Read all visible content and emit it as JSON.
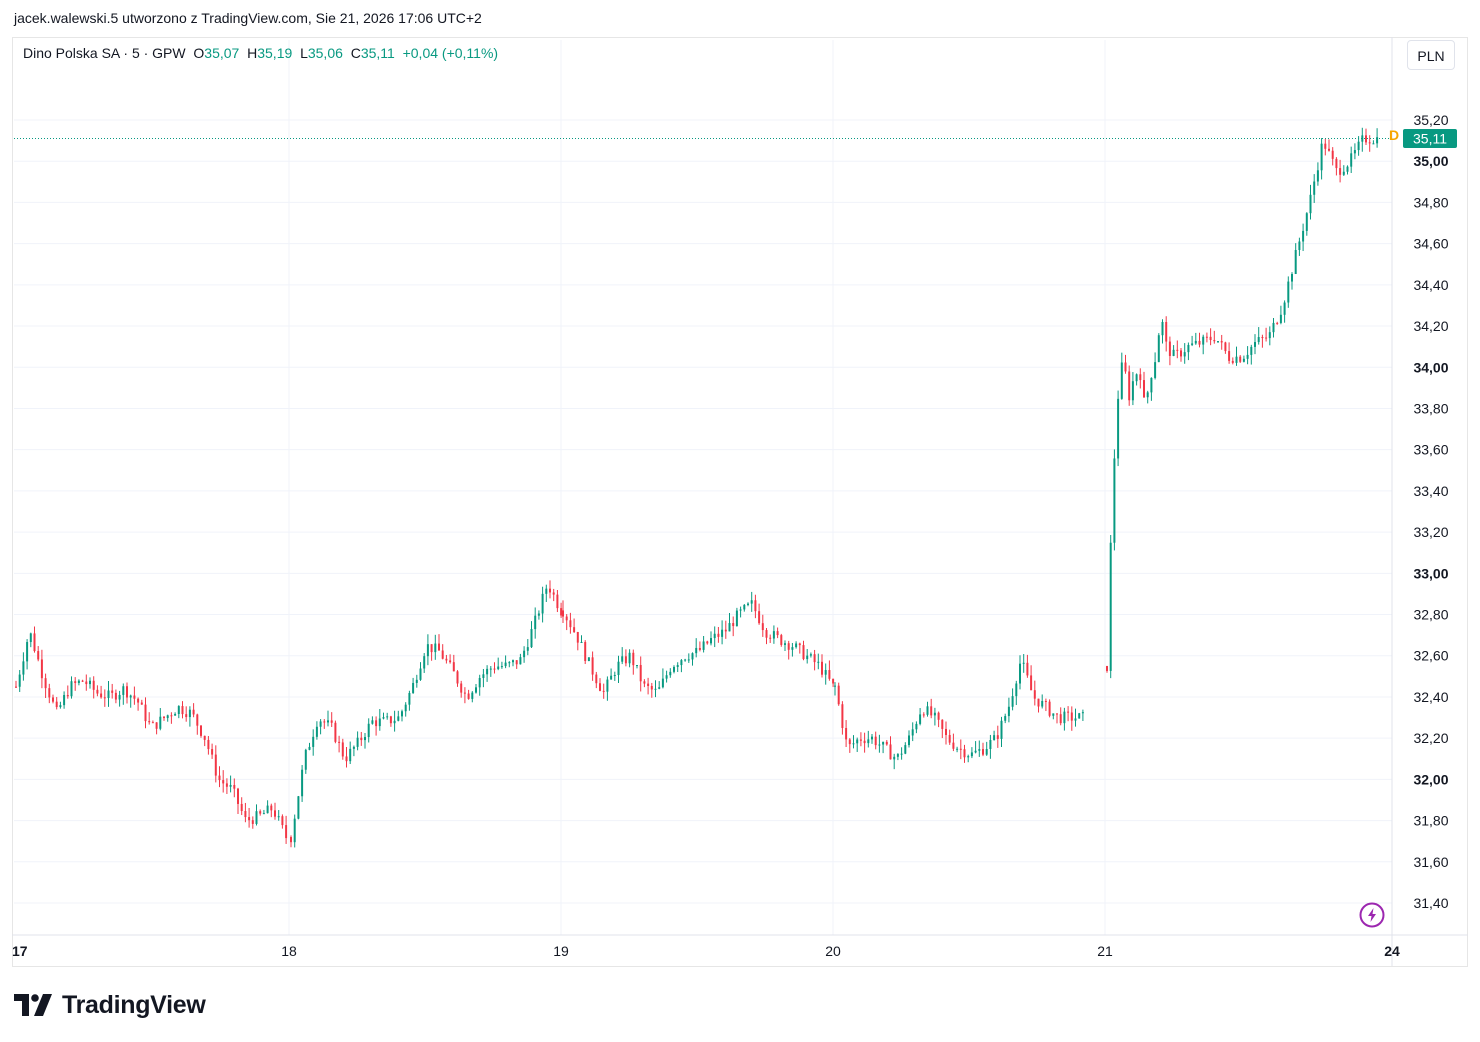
{
  "header": {
    "attribution": "jacek.walewski.5 utworzono z TradingView.com, Sie 21, 2026 17:06 UTC+2"
  },
  "legend": {
    "symbol": "Dino Polska SA · 5 · GPW",
    "o_label": "O",
    "o_value": "35,07",
    "h_label": "H",
    "h_value": "35,19",
    "l_label": "L",
    "l_value": "35,06",
    "c_label": "C",
    "c_value": "35,11",
    "change": "+0,04 (+0,11%)"
  },
  "currency": "PLN",
  "last_price_label": "35,11",
  "dividend_marker": "D",
  "logo_text": "TradingView",
  "colors": {
    "up": "#089981",
    "down": "#f23645",
    "accent": "#089981",
    "dividend": "#f7a600",
    "lightning": "#9c27b0"
  },
  "icons": {
    "logo": "tradingview-logo-icon",
    "alert": "lightning-icon"
  },
  "chart_data": {
    "type": "candlestick",
    "symbol": "Dino Polska SA",
    "interval": "5",
    "exchange": "GPW",
    "currency": "PLN",
    "ylim": [
      31.3,
      35.3
    ],
    "yticks": [
      31.4,
      31.6,
      31.8,
      32.0,
      32.2,
      32.4,
      32.6,
      32.8,
      33.0,
      33.2,
      33.4,
      33.6,
      33.8,
      34.0,
      34.2,
      34.4,
      34.6,
      34.8,
      35.0,
      35.2
    ],
    "ytick_labels": [
      "31,40",
      "31,60",
      "31,80",
      "32,00",
      "32,20",
      "32,40",
      "32,60",
      "32,80",
      "33,00",
      "33,20",
      "33,40",
      "33,60",
      "33,80",
      "34,00",
      "34,20",
      "34,40",
      "34,60",
      "34,80",
      "35,00",
      "35,20"
    ],
    "ytick_bold": [
      "32,00",
      "33,00",
      "34,00",
      "35,00"
    ],
    "xticks": [
      "17",
      "18",
      "19",
      "20",
      "21",
      "24"
    ],
    "session_path": [
      [
        [
          0,
          32.45
        ],
        [
          0.05,
          32.72
        ],
        [
          0.1,
          32.5
        ],
        [
          0.15,
          32.32
        ],
        [
          0.2,
          32.45
        ],
        [
          0.25,
          32.48
        ],
        [
          0.3,
          32.42
        ],
        [
          0.35,
          32.4
        ],
        [
          0.4,
          32.44
        ],
        [
          0.45,
          32.38
        ],
        [
          0.5,
          32.25
        ],
        [
          0.55,
          32.3
        ],
        [
          0.6,
          32.35
        ],
        [
          0.65,
          32.32
        ],
        [
          0.7,
          32.2
        ],
        [
          0.75,
          32.0
        ],
        [
          0.8,
          31.95
        ],
        [
          0.85,
          31.8
        ],
        [
          0.9,
          31.82
        ],
        [
          0.95,
          31.86
        ],
        [
          1.0,
          31.72
        ]
      ],
      [
        [
          0,
          31.72
        ],
        [
          0.05,
          32.1
        ],
        [
          0.1,
          32.3
        ],
        [
          0.15,
          32.25
        ],
        [
          0.2,
          32.1
        ],
        [
          0.25,
          32.18
        ],
        [
          0.3,
          32.28
        ],
        [
          0.35,
          32.28
        ],
        [
          0.4,
          32.3
        ],
        [
          0.45,
          32.45
        ],
        [
          0.5,
          32.65
        ],
        [
          0.55,
          32.62
        ],
        [
          0.6,
          32.52
        ],
        [
          0.65,
          32.4
        ],
        [
          0.7,
          32.5
        ],
        [
          0.75,
          32.55
        ],
        [
          0.8,
          32.55
        ],
        [
          0.85,
          32.58
        ],
        [
          0.9,
          32.75
        ],
        [
          0.95,
          32.95
        ],
        [
          1.0,
          32.82
        ]
      ],
      [
        [
          0,
          32.82
        ],
        [
          0.05,
          32.7
        ],
        [
          0.1,
          32.55
        ],
        [
          0.15,
          32.42
        ],
        [
          0.2,
          32.55
        ],
        [
          0.25,
          32.6
        ],
        [
          0.3,
          32.45
        ],
        [
          0.35,
          32.42
        ],
        [
          0.4,
          32.55
        ],
        [
          0.45,
          32.6
        ],
        [
          0.5,
          32.62
        ],
        [
          0.55,
          32.68
        ],
        [
          0.6,
          32.72
        ],
        [
          0.65,
          32.8
        ],
        [
          0.7,
          32.85
        ],
        [
          0.75,
          32.72
        ],
        [
          0.8,
          32.68
        ],
        [
          0.85,
          32.65
        ],
        [
          0.9,
          32.6
        ],
        [
          0.95,
          32.55
        ],
        [
          1.0,
          32.45
        ]
      ],
      [
        [
          0,
          32.45
        ],
        [
          0.05,
          32.15
        ],
        [
          0.1,
          32.2
        ],
        [
          0.15,
          32.2
        ],
        [
          0.2,
          32.15
        ],
        [
          0.25,
          32.1
        ],
        [
          0.3,
          32.2
        ],
        [
          0.35,
          32.35
        ],
        [
          0.4,
          32.3
        ],
        [
          0.45,
          32.2
        ],
        [
          0.5,
          32.15
        ],
        [
          0.55,
          32.12
        ],
        [
          0.6,
          32.15
        ],
        [
          0.65,
          32.2
        ],
        [
          0.7,
          32.35
        ],
        [
          0.75,
          32.58
        ],
        [
          0.8,
          32.4
        ],
        [
          0.85,
          32.35
        ],
        [
          0.9,
          32.3
        ]
      ],
      [
        [
          0,
          32.55
        ],
        [
          0.02,
          33.4
        ],
        [
          0.04,
          33.85
        ],
        [
          0.06,
          34.05
        ],
        [
          0.08,
          33.85
        ],
        [
          0.1,
          33.95
        ],
        [
          0.12,
          34.0
        ],
        [
          0.14,
          33.8
        ],
        [
          0.16,
          33.95
        ],
        [
          0.18,
          34.05
        ],
        [
          0.2,
          34.25
        ],
        [
          0.22,
          34.1
        ],
        [
          0.25,
          34.05
        ],
        [
          0.3,
          34.1
        ],
        [
          0.35,
          34.12
        ],
        [
          0.4,
          34.15
        ],
        [
          0.45,
          34.05
        ],
        [
          0.5,
          34.05
        ],
        [
          0.55,
          34.12
        ],
        [
          0.6,
          34.15
        ],
        [
          0.65,
          34.3
        ],
        [
          0.7,
          34.55
        ],
        [
          0.75,
          34.8
        ],
        [
          0.8,
          35.1
        ],
        [
          0.85,
          34.95
        ],
        [
          0.9,
          35.0
        ],
        [
          0.95,
          35.11
        ]
      ]
    ],
    "last": {
      "open": 35.07,
      "high": 35.19,
      "low": 35.06,
      "close": 35.11,
      "change": 0.04,
      "change_pct": 0.11
    }
  }
}
